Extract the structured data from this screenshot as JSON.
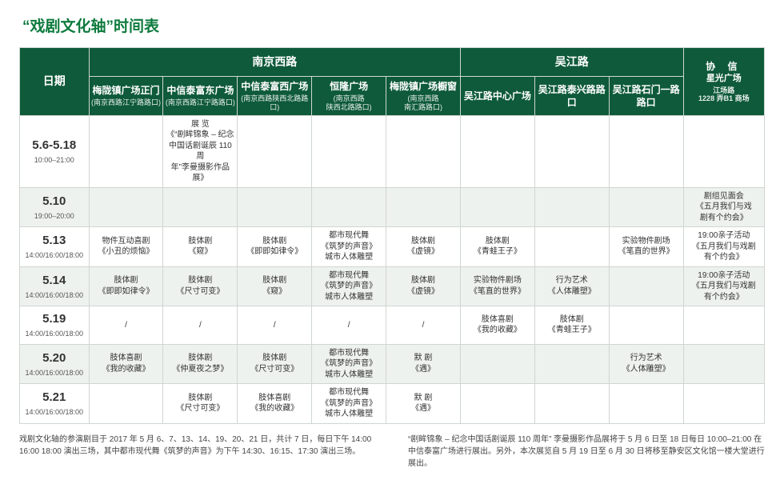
{
  "title": "“戏剧文化轴”时间表",
  "colors": {
    "accent": "#0d7a3d",
    "headerBg": "#0e5a3a",
    "headerFg": "#ffffff",
    "altRowBg": "#eef2ef",
    "border": "#cfd6d1"
  },
  "header": {
    "dateLabel": "日期",
    "groups": [
      {
        "label": "南京西路",
        "span": 5
      },
      {
        "label": "吴江路",
        "span": 3
      }
    ],
    "lastGroup": {
      "main": "协 信",
      "line2": "星光广场",
      "sub": "江场路\n1228 弄B1 商场"
    },
    "cols": [
      {
        "main": "梅陇镇广场正门",
        "sub": "(南京西路江宁路路口)"
      },
      {
        "main": "中信泰富东广场",
        "sub": "(南京西路江宁路路口)"
      },
      {
        "main": "中信泰富西广场",
        "sub": "(南京西路陕西北路路口)"
      },
      {
        "main": "恒隆广场",
        "sub": "(南京西路\n陕西北路路口)"
      },
      {
        "main": "梅陇镇广场橱窗",
        "sub": "(南京西路\n南汇路路口)"
      },
      {
        "main": "吴江路中心广场",
        "sub": ""
      },
      {
        "main": "吴江路泰兴路路口",
        "sub": ""
      },
      {
        "main": "吴江路石门一路路口",
        "sub": ""
      }
    ]
  },
  "rows": [
    {
      "alt": false,
      "date": {
        "main": "5.6-5.18",
        "sub": "10:00–21:00"
      },
      "cells": [
        "",
        "展  览\n《“剧眸锦象 – 纪念\n中国话剧诞辰 110 周\n年”李曼摄影作品展》",
        "",
        "",
        "",
        "",
        "",
        "",
        ""
      ]
    },
    {
      "alt": true,
      "date": {
        "main": "5.10",
        "sub": "19:00–20:00"
      },
      "cells": [
        "",
        "",
        "",
        "",
        "",
        "",
        "",
        "",
        "剧组见面会\n《五月我们与戏\n剧有个约会》"
      ]
    },
    {
      "alt": false,
      "date": {
        "main": "5.13",
        "sub": "14:00/16:00/18:00"
      },
      "cells": [
        "物件互动喜剧\n《小丑的烦恼》",
        "肢体剧\n《窥》",
        "肢体剧\n《即即如律令》",
        "都市现代舞\n《筑梦的声音》\n城市人体雕塑",
        "肢体剧\n《虚镜》",
        "肢体剧\n《青蛙王子》",
        "",
        "实验物件剧场\n《笔直的世界》",
        "19:00亲子活动\n《五月我们与戏剧\n有个约会》"
      ]
    },
    {
      "alt": true,
      "date": {
        "main": "5.14",
        "sub": "14:00/16:00/18:00"
      },
      "cells": [
        "肢体剧\n《即即如律令》",
        "肢体剧\n《尺寸可变》",
        "肢体剧\n《窥》",
        "都市现代舞\n《筑梦的声音》\n城市人体雕塑",
        "肢体剧\n《虚镜》",
        "实验物件剧场\n《笔直的世界》",
        "行为艺术\n《人体雕塑》",
        "",
        "19:00亲子活动\n《五月我们与戏剧\n有个约会》"
      ]
    },
    {
      "alt": false,
      "date": {
        "main": "5.19",
        "sub": "14:00/16:00/18:00"
      },
      "cells": [
        "/",
        "/",
        "/",
        "/",
        "/",
        "肢体喜剧\n《我的收藏》",
        "肢体剧\n《青蛙王子》",
        "",
        ""
      ]
    },
    {
      "alt": true,
      "date": {
        "main": "5.20",
        "sub": "14:00/16:00/18:00"
      },
      "cells": [
        "肢体喜剧\n《我的收藏》",
        "肢体剧\n《仲夏夜之梦》",
        "肢体剧\n《尺寸可变》",
        "都市现代舞\n《筑梦的声音》\n城市人体雕塑",
        "默 剧\n《遇》",
        "",
        "",
        "行为艺术\n《人体雕塑》",
        ""
      ]
    },
    {
      "alt": false,
      "date": {
        "main": "5.21",
        "sub": "14:00/16:00/18:00"
      },
      "cells": [
        "",
        "肢体剧\n《尺寸可变》",
        "肢体喜剧\n《我的收藏》",
        "都市现代舞\n《筑梦的声音》\n城市人体雕塑",
        "默 剧\n《遇》",
        "",
        "",
        "",
        ""
      ]
    }
  ],
  "footnotes": {
    "left": "戏剧文化轴的参演剧目于 2017 年 5 月 6、7、13、14、19、20、21 日，共计 7 日，每日下午 14:00\n16:00 18:00 演出三场，其中都市现代舞《筑梦的声音》为下午 14:30、16:15、17:30 演出三场。",
    "right": "“剧眸锦象 – 纪念中国话剧诞辰 110 周年” 李曼摄影作品展将于 5 月 6 日至 18 日每日 10:00–21:00 在\n中信泰富广场进行展出。另外，本次展览自 5 月 19 日至 6 月 30 日将移至静安区文化馆一楼大堂进行展出。"
  }
}
